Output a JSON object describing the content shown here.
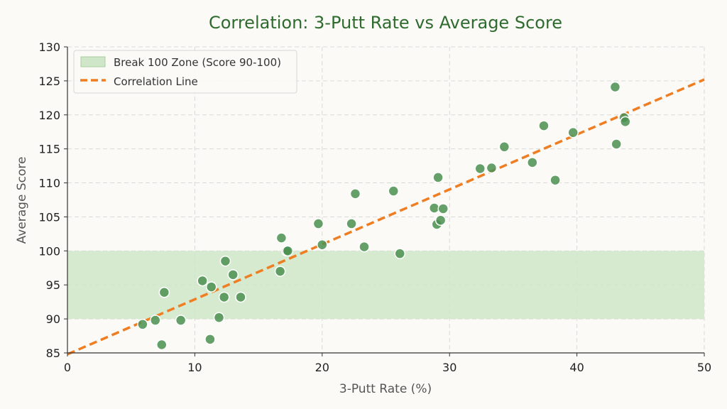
{
  "chart_data": {
    "type": "scatter",
    "title": "Correlation: 3-Putt Rate vs Average Score",
    "xlabel": "3-Putt Rate (%)",
    "ylabel": "Average Score",
    "xlim": [
      0,
      50
    ],
    "ylim": [
      85,
      130
    ],
    "xticks": [
      "0",
      "10",
      "20",
      "30",
      "40",
      "50"
    ],
    "yticks": [
      "85",
      "90",
      "95",
      "100",
      "105",
      "110",
      "115",
      "120",
      "125",
      "130"
    ],
    "grid": true,
    "legend_position": "top-left",
    "zone": {
      "label": "Break 100 Zone (Score 90-100)",
      "y_from": 90,
      "y_to": 100,
      "color": "#cfe6c9"
    },
    "trend_line": {
      "label": "Correlation Line",
      "x": [
        0,
        50
      ],
      "y": [
        84.8,
        125.2
      ],
      "color": "#ef7d22"
    },
    "points_color": "#4a8f50",
    "title_color": "#2e6b2e",
    "points": [
      {
        "x": 5.9,
        "y": 89.2
      },
      {
        "x": 6.9,
        "y": 89.8
      },
      {
        "x": 7.4,
        "y": 86.2
      },
      {
        "x": 7.6,
        "y": 93.9
      },
      {
        "x": 8.9,
        "y": 89.8
      },
      {
        "x": 10.6,
        "y": 95.6
      },
      {
        "x": 11.2,
        "y": 87.0
      },
      {
        "x": 11.3,
        "y": 94.7
      },
      {
        "x": 11.9,
        "y": 90.2
      },
      {
        "x": 12.3,
        "y": 93.2
      },
      {
        "x": 12.4,
        "y": 98.5
      },
      {
        "x": 13.0,
        "y": 96.5
      },
      {
        "x": 13.6,
        "y": 93.2
      },
      {
        "x": 16.7,
        "y": 97.0
      },
      {
        "x": 16.8,
        "y": 101.9
      },
      {
        "x": 17.2,
        "y": 100.0
      },
      {
        "x": 17.3,
        "y": 100.0
      },
      {
        "x": 19.7,
        "y": 104.0
      },
      {
        "x": 20.0,
        "y": 100.9
      },
      {
        "x": 22.3,
        "y": 104.0
      },
      {
        "x": 22.6,
        "y": 108.4
      },
      {
        "x": 23.3,
        "y": 100.6
      },
      {
        "x": 25.6,
        "y": 108.8
      },
      {
        "x": 26.1,
        "y": 99.6
      },
      {
        "x": 28.8,
        "y": 106.3
      },
      {
        "x": 29.0,
        "y": 103.9
      },
      {
        "x": 29.1,
        "y": 110.8
      },
      {
        "x": 29.3,
        "y": 104.5
      },
      {
        "x": 29.5,
        "y": 106.2
      },
      {
        "x": 32.4,
        "y": 112.1
      },
      {
        "x": 33.3,
        "y": 112.2
      },
      {
        "x": 34.3,
        "y": 115.3
      },
      {
        "x": 36.5,
        "y": 113.0
      },
      {
        "x": 37.4,
        "y": 118.4
      },
      {
        "x": 38.3,
        "y": 110.4
      },
      {
        "x": 39.7,
        "y": 117.4
      },
      {
        "x": 43.0,
        "y": 124.1
      },
      {
        "x": 43.1,
        "y": 115.7
      },
      {
        "x": 43.7,
        "y": 119.6
      },
      {
        "x": 43.8,
        "y": 119.0
      }
    ]
  }
}
